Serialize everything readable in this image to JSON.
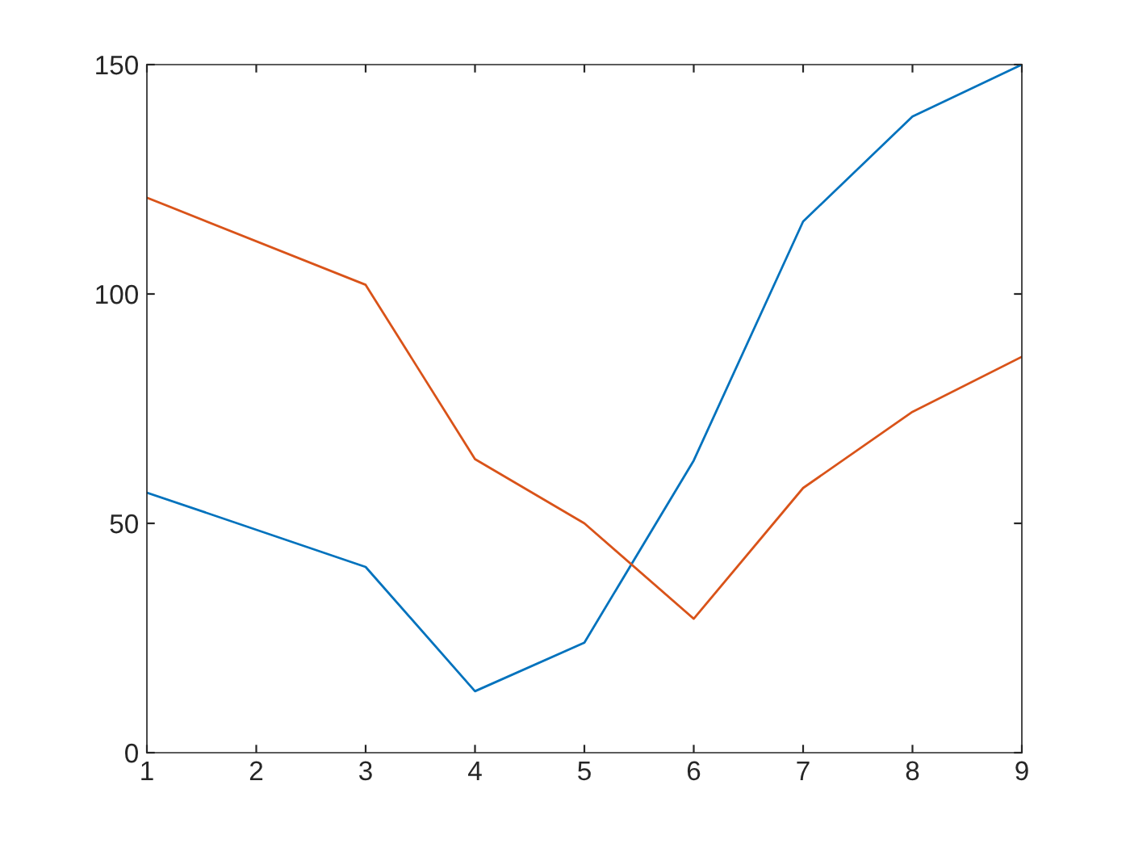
{
  "chart_data": {
    "type": "line",
    "x": [
      1,
      3,
      4,
      5,
      6,
      7,
      8,
      9
    ],
    "series": [
      {
        "color": "#0072bd",
        "values": [
          56.7,
          40.5,
          13.4,
          24,
          63.7,
          115.8,
          138.7,
          150
        ]
      },
      {
        "color": "#d95319",
        "values": [
          121,
          102,
          64,
          50,
          29.2,
          57.7,
          74.3,
          86.3
        ]
      }
    ],
    "xlim": [
      1,
      9
    ],
    "xticks": [
      1,
      2,
      3,
      4,
      5,
      6,
      7,
      8,
      9
    ],
    "ylim": [
      0,
      150
    ],
    "yticks": [
      0,
      50,
      100,
      150
    ],
    "grid": false,
    "marker": "none",
    "line_style": "solid"
  }
}
